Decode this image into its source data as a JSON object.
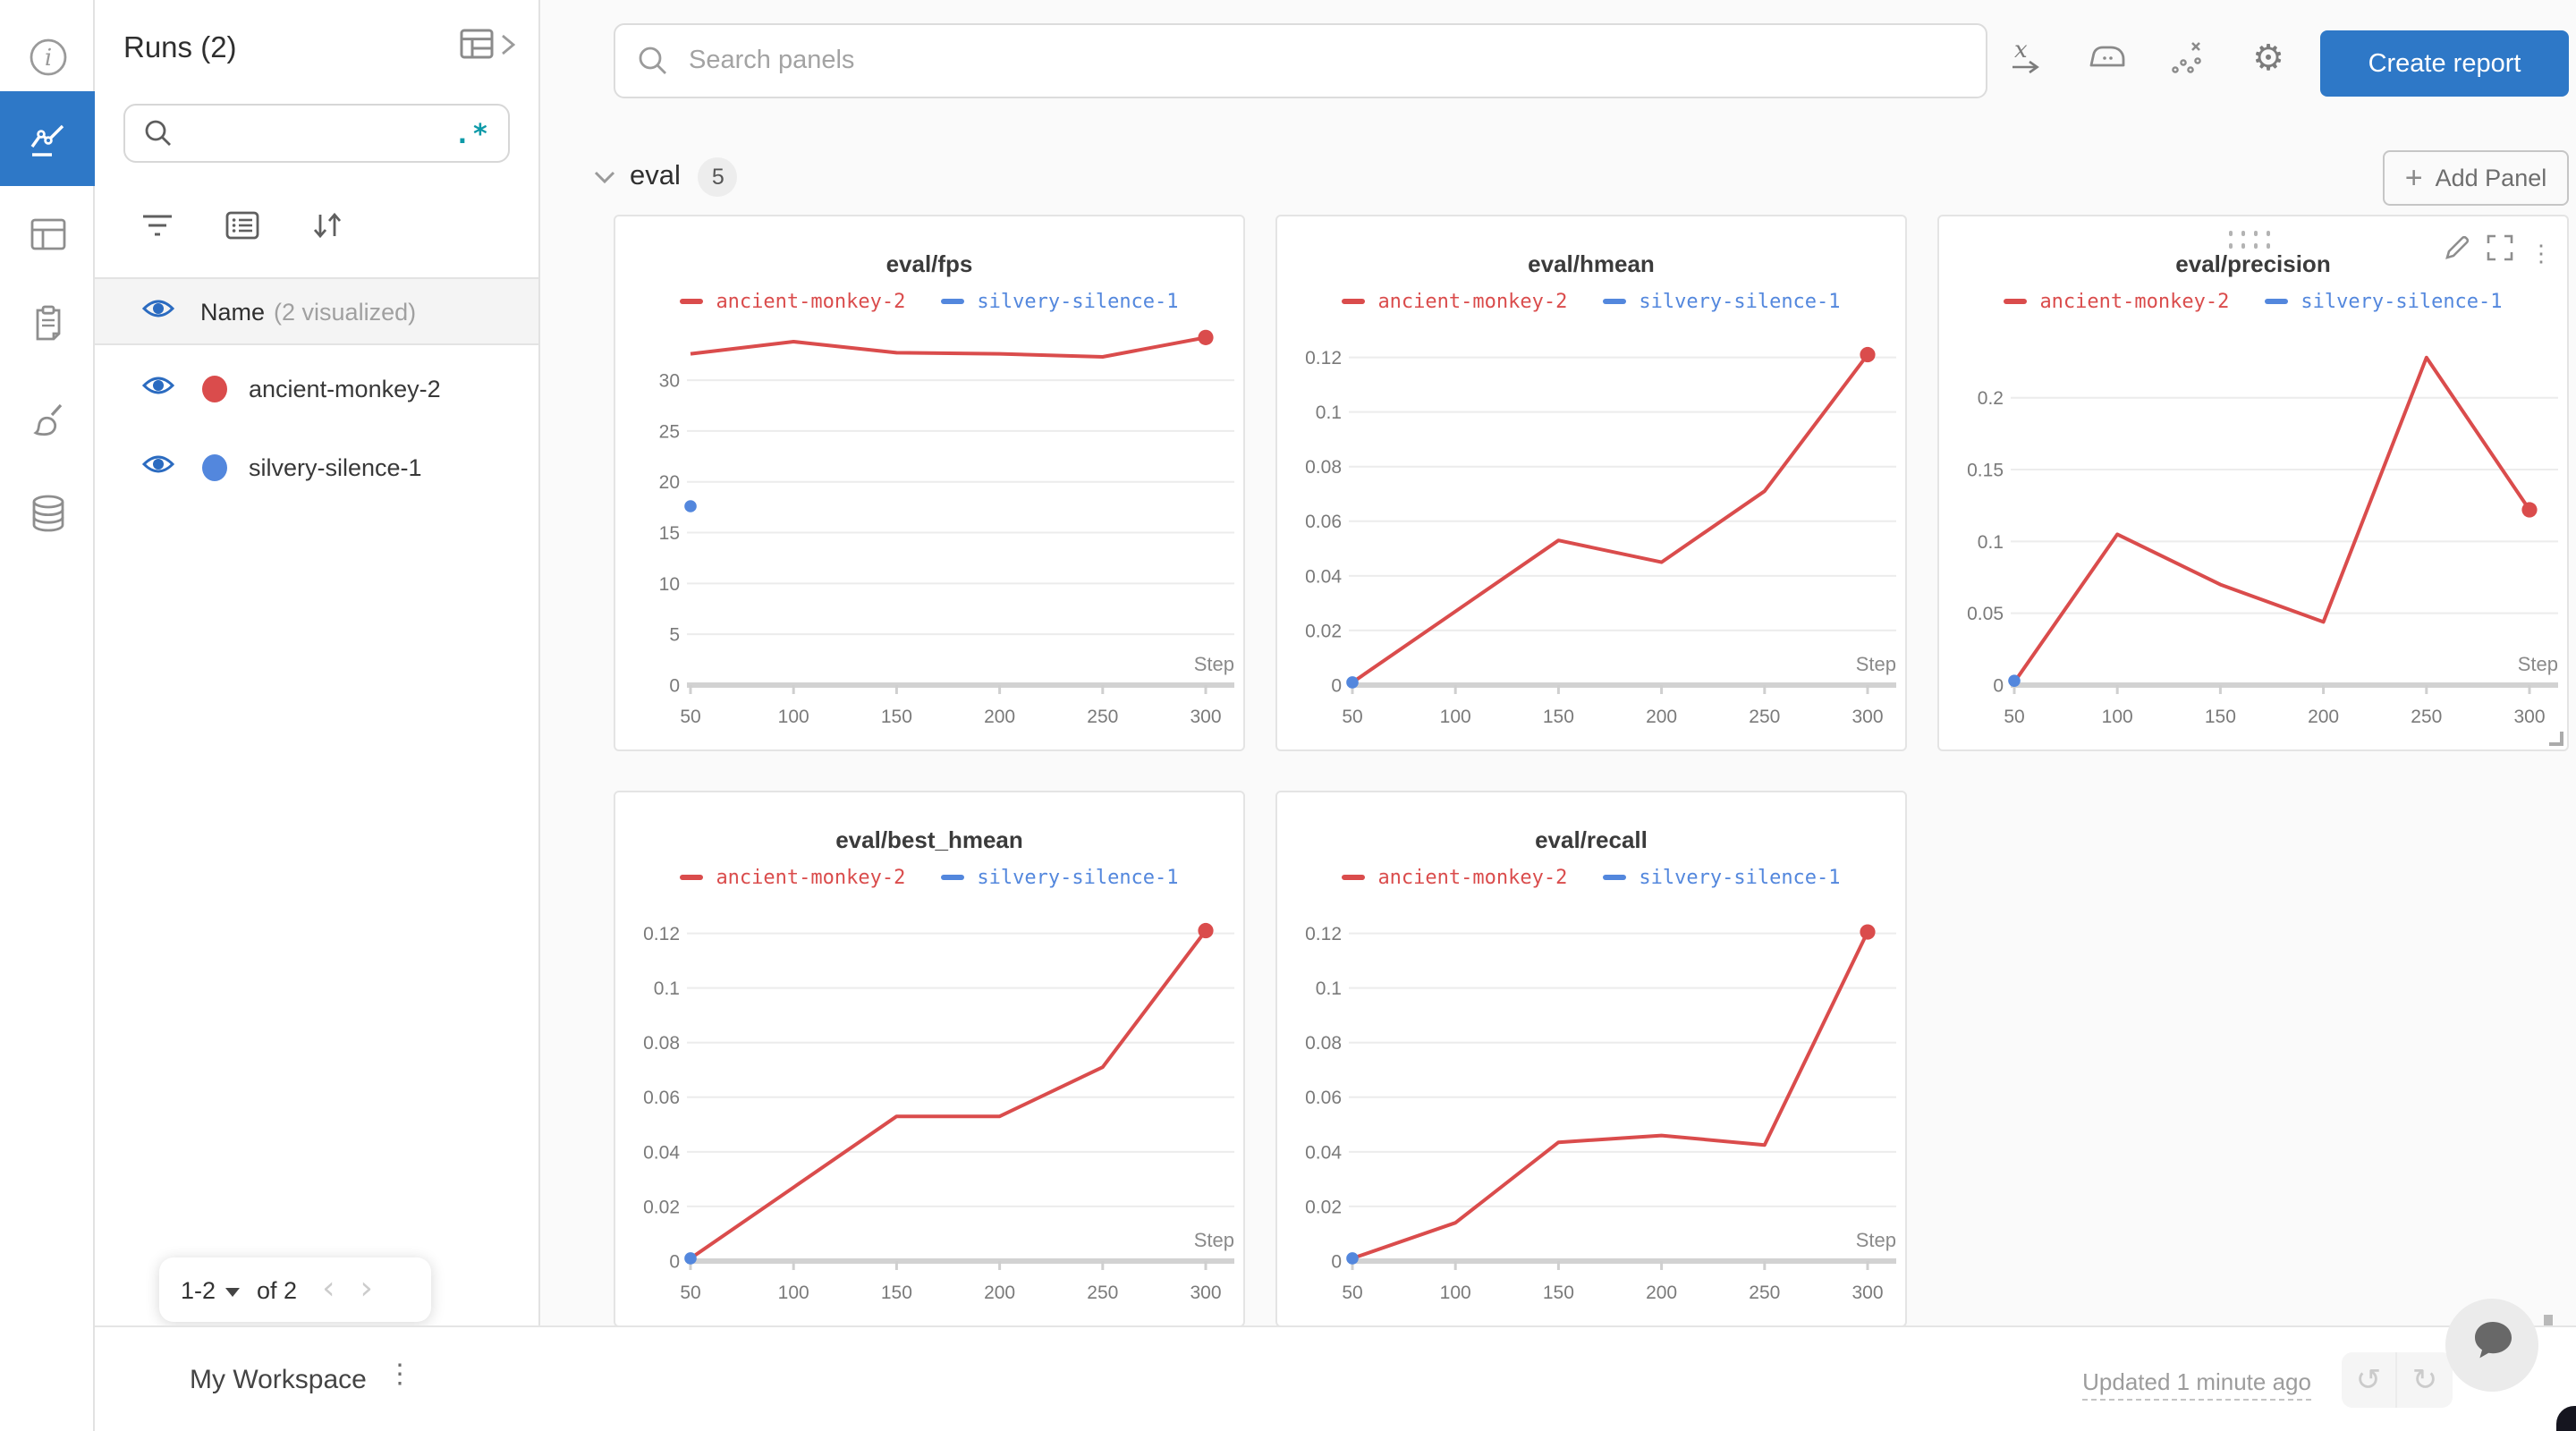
{
  "colors": {
    "accent_blue": "#2e78c7",
    "run_red": "#da4c4c",
    "run_blue": "#5387dd",
    "regex_teal": "#0d9aa8",
    "eye_blue": "#2b6bc0"
  },
  "rail": {
    "items": [
      {
        "name": "info"
      },
      {
        "name": "workspace-charts",
        "active": true
      },
      {
        "name": "table"
      },
      {
        "name": "logs"
      },
      {
        "name": "sweeps"
      },
      {
        "name": "artifacts"
      }
    ]
  },
  "runs_panel": {
    "title": "Runs (2)",
    "search_value": "",
    "regex_hint": ".*",
    "name_header": "Name",
    "visualized_note": "(2 visualized)",
    "runs": [
      {
        "name": "ancient-monkey-2",
        "color": "#da4c4c"
      },
      {
        "name": "silvery-silence-1",
        "color": "#5387dd"
      }
    ],
    "pagination": {
      "range": "1-2",
      "of": "of 2",
      "prev": "‹",
      "next": "›"
    }
  },
  "header": {
    "search_placeholder": "Search panels",
    "icons": [
      "x-axis",
      "smoothing",
      "outliers",
      "settings"
    ],
    "create_report_label": "Create report"
  },
  "section": {
    "title": "eval",
    "count": "5",
    "add_panel_label": "Add Panel",
    "add_panel_plus": "+"
  },
  "chart_data": [
    {
      "type": "line",
      "title": "eval/fps",
      "xlabel": "Step",
      "x": [
        50,
        100,
        150,
        200,
        250,
        300
      ],
      "x_range": [
        50,
        300
      ],
      "yticks": [
        {
          "v": 0,
          "label": "0"
        },
        {
          "v": 5,
          "label": "5"
        },
        {
          "v": 10,
          "label": "10"
        },
        {
          "v": 15,
          "label": "15"
        },
        {
          "v": 20,
          "label": "20"
        },
        {
          "v": 25,
          "label": "25"
        },
        {
          "v": 30,
          "label": "30"
        }
      ],
      "ylim": [
        0,
        35.2
      ],
      "grid": true,
      "legend_position": "top",
      "series": [
        {
          "name": "ancient-monkey-2",
          "color": "#da4c4c",
          "values": [
            32.6,
            33.8,
            32.7,
            32.6,
            32.3,
            34.2
          ],
          "end_dot": true
        },
        {
          "name": "silvery-silence-1",
          "color": "#5387dd",
          "points": [
            {
              "x": 50,
              "y": 17.6
            }
          ]
        }
      ]
    },
    {
      "type": "line",
      "title": "eval/hmean",
      "xlabel": "Step",
      "x": [
        50,
        100,
        150,
        200,
        250,
        300
      ],
      "x_range": [
        50,
        300
      ],
      "yticks": [
        {
          "v": 0,
          "label": "0"
        },
        {
          "v": 0.02,
          "label": "0.02"
        },
        {
          "v": 0.04,
          "label": "0.04"
        },
        {
          "v": 0.06,
          "label": "0.06"
        },
        {
          "v": 0.08,
          "label": "0.08"
        },
        {
          "v": 0.1,
          "label": "0.1"
        },
        {
          "v": 0.12,
          "label": "0.12"
        }
      ],
      "ylim": [
        0,
        0.131
      ],
      "grid": true,
      "legend_position": "top",
      "series": [
        {
          "name": "ancient-monkey-2",
          "color": "#da4c4c",
          "values": [
            0.001,
            0.027,
            0.053,
            0.045,
            0.071,
            0.121
          ],
          "end_dot": true
        },
        {
          "name": "silvery-silence-1",
          "color": "#5387dd",
          "points": [
            {
              "x": 50,
              "y": 0.001
            }
          ]
        }
      ]
    },
    {
      "type": "line",
      "title": "eval/precision",
      "xlabel": "Step",
      "x": [
        50,
        100,
        150,
        200,
        250,
        300
      ],
      "x_range": [
        50,
        300
      ],
      "yticks": [
        {
          "v": 0,
          "label": "0"
        },
        {
          "v": 0.05,
          "label": "0.05"
        },
        {
          "v": 0.1,
          "label": "0.1"
        },
        {
          "v": 0.15,
          "label": "0.15"
        },
        {
          "v": 0.2,
          "label": "0.2"
        }
      ],
      "ylim": [
        0,
        0.249
      ],
      "grid": true,
      "legend_position": "top",
      "hovered": true,
      "series": [
        {
          "name": "ancient-monkey-2",
          "color": "#da4c4c",
          "values": [
            0.002,
            0.105,
            0.07,
            0.044,
            0.228,
            0.122
          ],
          "end_dot": true
        },
        {
          "name": "silvery-silence-1",
          "color": "#5387dd",
          "points": [
            {
              "x": 50,
              "y": 0.003
            }
          ]
        }
      ]
    },
    {
      "type": "line",
      "title": "eval/best_hmean",
      "xlabel": "Step",
      "x": [
        50,
        100,
        150,
        200,
        250,
        300
      ],
      "x_range": [
        50,
        300
      ],
      "yticks": [
        {
          "v": 0,
          "label": "0"
        },
        {
          "v": 0.02,
          "label": "0.02"
        },
        {
          "v": 0.04,
          "label": "0.04"
        },
        {
          "v": 0.06,
          "label": "0.06"
        },
        {
          "v": 0.08,
          "label": "0.08"
        },
        {
          "v": 0.1,
          "label": "0.1"
        },
        {
          "v": 0.12,
          "label": "0.12"
        }
      ],
      "ylim": [
        0,
        0.131
      ],
      "grid": true,
      "legend_position": "top",
      "series": [
        {
          "name": "ancient-monkey-2",
          "color": "#da4c4c",
          "values": [
            0.001,
            0.027,
            0.053,
            0.053,
            0.071,
            0.121
          ],
          "end_dot": true
        },
        {
          "name": "silvery-silence-1",
          "color": "#5387dd",
          "points": [
            {
              "x": 50,
              "y": 0.001
            }
          ]
        }
      ]
    },
    {
      "type": "line",
      "title": "eval/recall",
      "xlabel": "Step",
      "x": [
        50,
        100,
        150,
        200,
        250,
        300
      ],
      "x_range": [
        50,
        300
      ],
      "yticks": [
        {
          "v": 0,
          "label": "0"
        },
        {
          "v": 0.02,
          "label": "0.02"
        },
        {
          "v": 0.04,
          "label": "0.04"
        },
        {
          "v": 0.06,
          "label": "0.06"
        },
        {
          "v": 0.08,
          "label": "0.08"
        },
        {
          "v": 0.1,
          "label": "0.1"
        },
        {
          "v": 0.12,
          "label": "0.12"
        }
      ],
      "ylim": [
        0,
        0.131
      ],
      "grid": true,
      "legend_position": "top",
      "series": [
        {
          "name": "ancient-monkey-2",
          "color": "#da4c4c",
          "values": [
            0.001,
            0.014,
            0.0435,
            0.046,
            0.0425,
            0.1205
          ],
          "end_dot": true
        },
        {
          "name": "silvery-silence-1",
          "color": "#5387dd",
          "points": [
            {
              "x": 50,
              "y": 0.001
            }
          ]
        }
      ]
    }
  ],
  "footer": {
    "workspace_label": "My Workspace",
    "updated_text": "Updated 1 minute ago"
  }
}
